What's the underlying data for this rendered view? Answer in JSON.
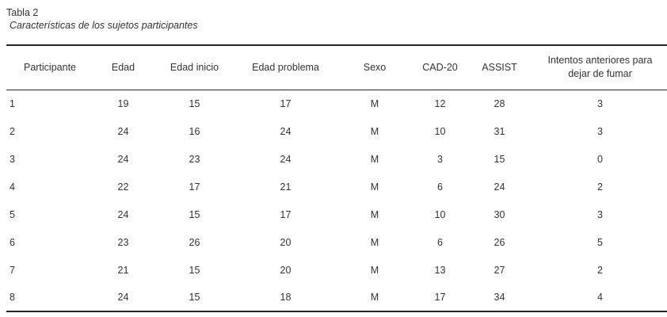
{
  "table": {
    "label": "Tabla 2",
    "caption": "Características de los sujetos participantes",
    "columns": [
      "Participante",
      "Edad",
      "Edad inicio",
      "Edad problema",
      "Sexo",
      "CAD-20",
      "ASSIST",
      "Intentos anteriores para dejar de fumar"
    ],
    "rows": [
      [
        "1",
        "19",
        "15",
        "17",
        "M",
        "12",
        "28",
        "3"
      ],
      [
        "2",
        "24",
        "16",
        "24",
        "M",
        "10",
        "31",
        "3"
      ],
      [
        "3",
        "24",
        "23",
        "24",
        "M",
        "3",
        "15",
        "0"
      ],
      [
        "4",
        "22",
        "17",
        "21",
        "M",
        "6",
        "24",
        "2"
      ],
      [
        "5",
        "24",
        "15",
        "17",
        "M",
        "10",
        "30",
        "3"
      ],
      [
        "6",
        "23",
        "26",
        "20",
        "M",
        "6",
        "26",
        "5"
      ],
      [
        "7",
        "21",
        "15",
        "20",
        "M",
        "13",
        "27",
        "2"
      ],
      [
        "8",
        "24",
        "15",
        "18",
        "M",
        "17",
        "34",
        "4"
      ]
    ],
    "colors": {
      "text": "#333333",
      "rule": "#262626",
      "background": "#ffffff"
    }
  }
}
